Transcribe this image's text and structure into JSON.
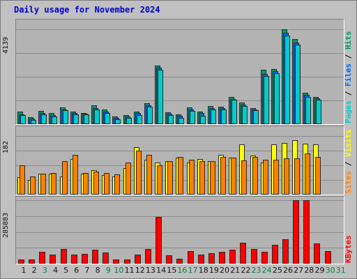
{
  "title": "Daily usage for November 2024",
  "colors": {
    "pages": "#00cccc",
    "files": "#0066ff",
    "hits": "#009966",
    "sites": "#ff8000",
    "visits": "#ffff00",
    "kbytes": "#ff0000",
    "weekday_label": "#111111",
    "weekend_label": "#008040"
  },
  "chart_data": [
    {
      "type": "bar",
      "name": "hits-files-pages",
      "ylim": [
        0,
        4139
      ],
      "max_label": "4139",
      "legend": [
        "Pages",
        "Files",
        "Hits"
      ],
      "legend_separator": " / ",
      "categories": [
        "1",
        "2",
        "3",
        "4",
        "5",
        "6",
        "7",
        "8",
        "9",
        "10",
        "11",
        "12",
        "13",
        "14",
        "15",
        "16",
        "17",
        "18",
        "19",
        "20",
        "21",
        "22",
        "23",
        "24",
        "25",
        "26",
        "27",
        "28",
        "29",
        "30",
        "31"
      ],
      "series": [
        {
          "name": "Hits",
          "values": [
            560,
            290,
            580,
            500,
            740,
            550,
            500,
            810,
            650,
            320,
            400,
            560,
            920,
            2560,
            530,
            420,
            720,
            540,
            780,
            770,
            1200,
            940,
            700,
            2360,
            2410,
            4130,
            3700,
            1380,
            1200,
            null,
            null
          ]
        },
        {
          "name": "Files",
          "values": [
            420,
            230,
            500,
            400,
            650,
            480,
            450,
            700,
            550,
            260,
            330,
            480,
            810,
            2450,
            450,
            350,
            630,
            480,
            700,
            700,
            1100,
            840,
            640,
            2200,
            2300,
            4000,
            3550,
            1280,
            1130,
            null,
            null
          ]
        },
        {
          "name": "Pages",
          "values": [
            390,
            190,
            430,
            340,
            600,
            440,
            440,
            640,
            480,
            200,
            270,
            410,
            760,
            2380,
            400,
            280,
            570,
            380,
            630,
            630,
            1060,
            790,
            600,
            2100,
            2210,
            3860,
            3460,
            1200,
            1070,
            null,
            null
          ]
        }
      ]
    },
    {
      "type": "bar",
      "name": "visits-sites",
      "ylim": [
        0,
        182
      ],
      "max_label": "182",
      "legend": [
        "Sites",
        "Visits"
      ],
      "legend_separator": " / ",
      "categories": [
        "1",
        "2",
        "3",
        "4",
        "5",
        "6",
        "7",
        "8",
        "9",
        "10",
        "11",
        "12",
        "13",
        "14",
        "15",
        "16",
        "17",
        "18",
        "19",
        "20",
        "21",
        "22",
        "23",
        "24",
        "25",
        "26",
        "27",
        "28",
        "29",
        "30",
        "31"
      ],
      "series": [
        {
          "name": "Visits",
          "values": [
            55,
            45,
            65,
            65,
            57,
            110,
            65,
            75,
            60,
            56,
            82,
            147,
            108,
            100,
            104,
            114,
            100,
            110,
            103,
            124,
            115,
            156,
            122,
            100,
            156,
            160,
            168,
            158,
            156,
            null,
            null
          ]
        },
        {
          "name": "Sites",
          "values": [
            90,
            56,
            65,
            68,
            104,
            123,
            67,
            72,
            68,
            62,
            100,
            136,
            123,
            91,
            105,
            116,
            108,
            105,
            104,
            118,
            114,
            107,
            116,
            108,
            108,
            112,
            113,
            127,
            118,
            null,
            null
          ]
        }
      ]
    },
    {
      "type": "bar",
      "name": "kbytes",
      "ylim": [
        0,
        285883
      ],
      "max_label": "285883",
      "legend": [
        "KBytes"
      ],
      "legend_separator": "",
      "categories": [
        "1",
        "2",
        "3",
        "4",
        "5",
        "6",
        "7",
        "8",
        "9",
        "10",
        "11",
        "12",
        "13",
        "14",
        "15",
        "16",
        "17",
        "18",
        "19",
        "20",
        "21",
        "22",
        "23",
        "24",
        "25",
        "26",
        "27",
        "28",
        "29",
        "30",
        "31"
      ],
      "series": [
        {
          "name": "KBytes",
          "values": [
            20000,
            20000,
            52000,
            40000,
            67000,
            40000,
            44000,
            62000,
            50000,
            20000,
            20000,
            40000,
            67000,
            210000,
            38000,
            22000,
            56000,
            40000,
            47000,
            52000,
            63000,
            95000,
            67000,
            52000,
            84000,
            110000,
            285883,
            285883,
            92000,
            58000,
            null
          ]
        }
      ]
    }
  ],
  "x_label_colors": [
    "weekday",
    "weekday",
    "weekend",
    "weekday",
    "weekday",
    "weekday",
    "weekday",
    "weekday",
    "weekend",
    "weekend",
    "weekday",
    "weekday",
    "weekday",
    "weekday",
    "weekday",
    "weekend",
    "weekend",
    "weekday",
    "weekday",
    "weekday",
    "weekday",
    "weekday",
    "weekend",
    "weekend",
    "weekday",
    "weekday",
    "weekday",
    "weekday",
    "weekday",
    "weekend",
    "weekend"
  ]
}
